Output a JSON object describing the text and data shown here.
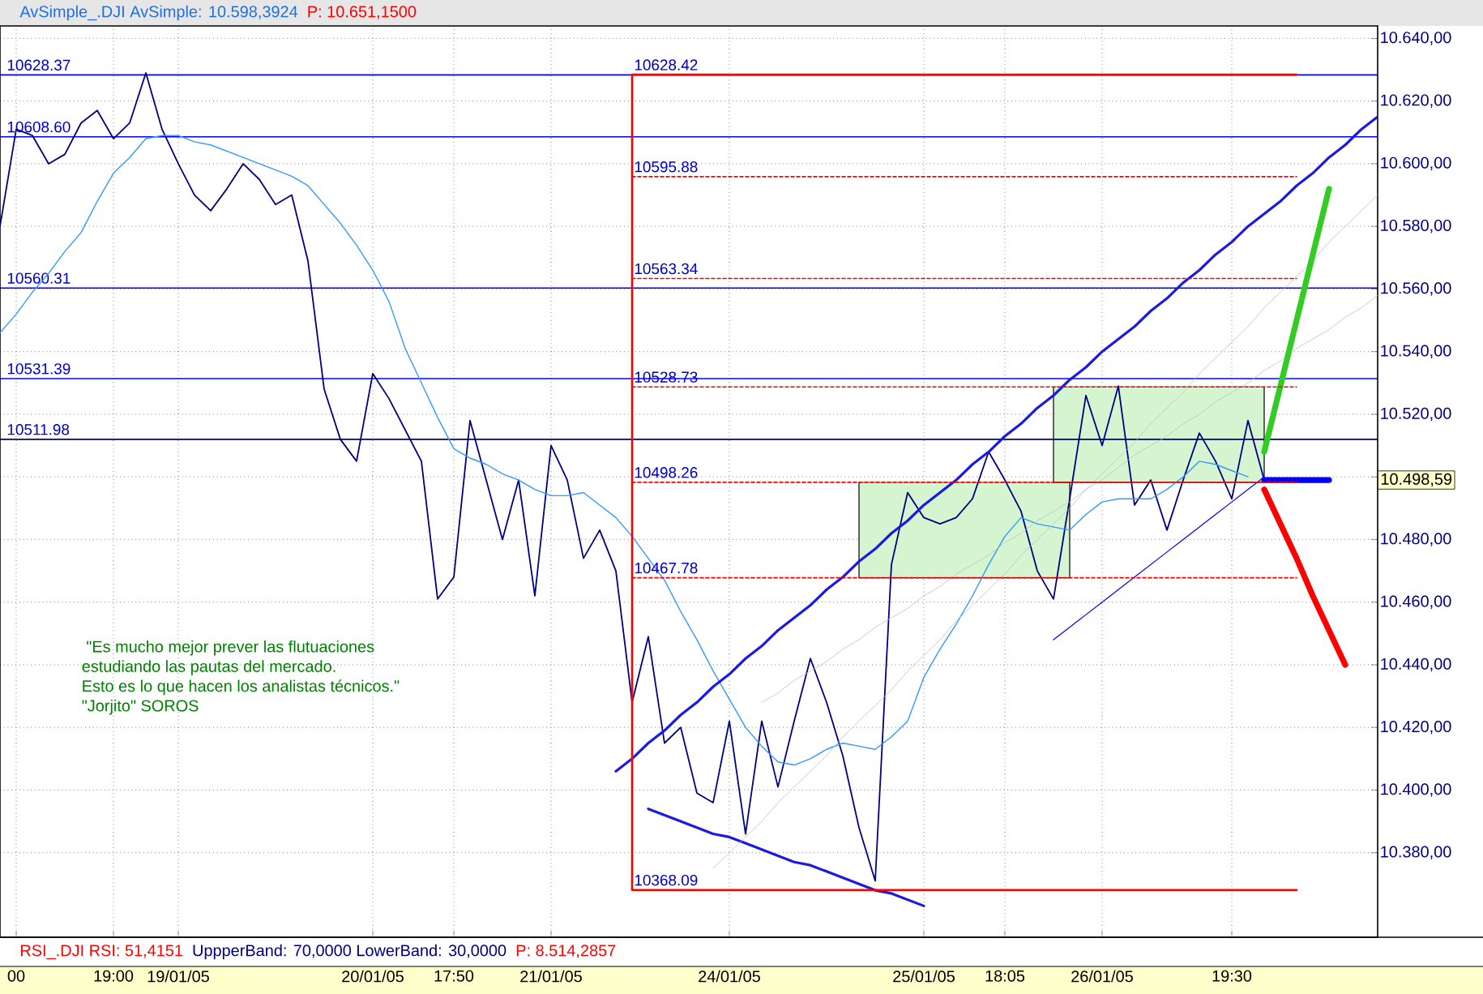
{
  "chart_data": {
    "type": "line",
    "title": "AvSimple_.DJI AvSimple: 10.598,3924",
    "subtitle": "P: 10.651,1500",
    "categories": [
      null,
      "00",
      null,
      null,
      null,
      null,
      null,
      "19:00",
      null,
      null,
      null,
      "19/01/05",
      null,
      null,
      null,
      null,
      null,
      null,
      null,
      null,
      null,
      null,
      null,
      "20/01/05",
      null,
      null,
      null,
      null,
      "17:50",
      null,
      null,
      null,
      null,
      null,
      "21/01/05",
      null,
      null,
      null,
      null,
      null,
      null,
      null,
      null,
      null,
      null,
      "24/01/05",
      null,
      null,
      null,
      null,
      null,
      null,
      null,
      null,
      null,
      null,
      null,
      "25/01/05",
      null,
      null,
      null,
      null,
      "18:05",
      null,
      null,
      null,
      null,
      null,
      "26/01/05",
      null,
      null,
      null,
      null,
      null,
      null,
      null,
      "19:30",
      null,
      null,
      null,
      null,
      null,
      null,
      null,
      null,
      null
    ],
    "ylim": [
      10353,
      10644
    ],
    "yticks": [
      {
        "value": 10380,
        "label": "10.380,00"
      },
      {
        "value": 10400,
        "label": "10.400,00"
      },
      {
        "value": 10420,
        "label": "10.420,00"
      },
      {
        "value": 10440,
        "label": "10.440,00"
      },
      {
        "value": 10460,
        "label": "10.460,00"
      },
      {
        "value": 10480,
        "label": "10.480,00"
      },
      {
        "value": 10500,
        "label": null
      },
      {
        "value": 10520,
        "label": "10.520,00"
      },
      {
        "value": 10540,
        "label": "10.540,00"
      },
      {
        "value": 10560,
        "label": "10.560,00"
      },
      {
        "value": 10580,
        "label": "10.580,00"
      },
      {
        "value": 10600,
        "label": "10.600,00"
      },
      {
        "value": 10620,
        "label": "10.620,00"
      },
      {
        "value": 10640,
        "label": "10.640,00"
      }
    ],
    "grid": true,
    "series": [
      {
        "color": "#000080",
        "values": [
          10580,
          10611,
          10609,
          10600,
          10603,
          10613,
          10617,
          10608,
          10613,
          10629,
          10611,
          10600,
          10590,
          10585,
          10592,
          10600,
          10595,
          10587,
          10590,
          10569,
          10528,
          10512,
          10505,
          10533,
          10525,
          10515,
          10505,
          10461,
          10468,
          10518,
          10499,
          10480,
          10499,
          10462,
          10510,
          10499,
          10474,
          10483,
          10470,
          10428,
          10449,
          10415,
          10420,
          10399,
          10396,
          10422,
          10386,
          10422,
          10401,
          10422,
          10442,
          10428,
          10411,
          10388,
          10371,
          10472,
          10495,
          10487,
          10485,
          10487,
          10493,
          10508,
          10499,
          10489,
          10470,
          10461,
          10493,
          10526,
          10510,
          10529,
          10491,
          10499,
          10483,
          10499,
          10514,
          10505,
          10493,
          10518,
          10499,
          null,
          null,
          null,
          null,
          null,
          null,
          null
        ]
      },
      {
        "color": "#3399ff",
        "values": [
          10546,
          10552,
          10559,
          10565,
          10572,
          10578,
          10588,
          10597,
          10602,
          10608,
          10609,
          10609,
          10607,
          10606,
          10604,
          10602,
          10600,
          10598,
          10596,
          10593,
          10587,
          10581,
          10574,
          10566,
          10556,
          10541,
          10530,
          10519,
          10509,
          10506,
          10504,
          10501,
          10499,
          10496,
          10494,
          10494,
          10495,
          10491,
          10487,
          10481,
          10474,
          10467,
          10457,
          10448,
          10438,
          10429,
          10420,
          10414,
          10409,
          10408,
          10410,
          10413,
          10415,
          10414,
          10413,
          10417,
          10422,
          10436,
          10445,
          10453,
          10462,
          10472,
          10481,
          10487,
          10485,
          10484,
          10483,
          10488,
          10492,
          10493,
          10493,
          10493,
          10496,
          10500,
          10505,
          10504,
          10502,
          10500,
          null,
          null,
          null,
          null,
          null,
          null,
          null,
          null
        ]
      },
      {
        "name": "10628.42",
        "color": "#ff0000",
        "values": [
          null,
          null,
          null,
          null,
          null,
          null,
          null,
          null,
          null,
          null,
          null,
          null,
          null,
          null,
          null,
          null,
          null,
          null,
          null,
          null,
          null,
          null,
          null,
          null,
          null,
          null,
          null,
          null,
          null,
          null,
          null,
          null,
          null,
          null,
          null,
          null,
          null,
          null,
          null,
          10628.42,
          10628.42,
          10628.42,
          10628.42,
          10628.42,
          10628.42,
          10628.42,
          10628.42,
          10628.42,
          10628.42,
          10628.42,
          10628.42,
          10628.42,
          10628.42,
          10628.42,
          10628.42,
          10628.42,
          10628.42,
          10628.42,
          10628.42,
          10628.42,
          10628.42,
          10628.42,
          10628.42,
          10628.42,
          10628.42,
          10628.42,
          10628.42,
          10628.42,
          10628.42,
          10628.42,
          10628.42,
          10628.42,
          10628.42,
          10628.42,
          10628.42,
          10628.42,
          10628.42,
          10628.42,
          10628.42,
          10628.42,
          10628.42,
          null,
          null,
          null,
          null,
          null
        ]
      },
      {
        "name": "10595.88",
        "color": "#ff0000",
        "line_style": "dashed",
        "values": [
          null,
          null,
          null,
          null,
          null,
          null,
          null,
          null,
          null,
          null,
          null,
          null,
          null,
          null,
          null,
          null,
          null,
          null,
          null,
          null,
          null,
          null,
          null,
          null,
          null,
          null,
          null,
          null,
          null,
          null,
          null,
          null,
          null,
          null,
          null,
          null,
          null,
          null,
          null,
          10595.88,
          10595.88,
          10595.88,
          10595.88,
          10595.88,
          10595.88,
          10595.88,
          10595.88,
          10595.88,
          10595.88,
          10595.88,
          10595.88,
          10595.88,
          10595.88,
          10595.88,
          10595.88,
          10595.88,
          10595.88,
          10595.88,
          10595.88,
          10595.88,
          10595.88,
          10595.88,
          10595.88,
          10595.88,
          10595.88,
          10595.88,
          10595.88,
          10595.88,
          10595.88,
          10595.88,
          10595.88,
          10595.88,
          10595.88,
          10595.88,
          10595.88,
          10595.88,
          10595.88,
          10595.88,
          10595.88,
          10595.88,
          10595.88,
          null,
          null,
          null,
          null,
          null
        ]
      },
      {
        "name": "10563.34",
        "color": "#ff0000",
        "line_style": "dashed",
        "values": [
          null,
          null,
          null,
          null,
          null,
          null,
          null,
          null,
          null,
          null,
          null,
          null,
          null,
          null,
          null,
          null,
          null,
          null,
          null,
          null,
          null,
          null,
          null,
          null,
          null,
          null,
          null,
          null,
          null,
          null,
          null,
          null,
          null,
          null,
          null,
          null,
          null,
          null,
          null,
          10563.34,
          10563.34,
          10563.34,
          10563.34,
          10563.34,
          10563.34,
          10563.34,
          10563.34,
          10563.34,
          10563.34,
          10563.34,
          10563.34,
          10563.34,
          10563.34,
          10563.34,
          10563.34,
          10563.34,
          10563.34,
          10563.34,
          10563.34,
          10563.34,
          10563.34,
          10563.34,
          10563.34,
          10563.34,
          10563.34,
          10563.34,
          10563.34,
          10563.34,
          10563.34,
          10563.34,
          10563.34,
          10563.34,
          10563.34,
          10563.34,
          10563.34,
          10563.34,
          10563.34,
          10563.34,
          10563.34,
          10563.34,
          10563.34,
          null,
          null,
          null,
          null,
          null
        ]
      },
      {
        "name": "10528.73",
        "color": "#ff0000",
        "line_style": "dashed",
        "values": [
          null,
          null,
          null,
          null,
          null,
          null,
          null,
          null,
          null,
          null,
          null,
          null,
          null,
          null,
          null,
          null,
          null,
          null,
          null,
          null,
          null,
          null,
          null,
          null,
          null,
          null,
          null,
          null,
          null,
          null,
          null,
          null,
          null,
          null,
          null,
          null,
          null,
          null,
          null,
          10528.73,
          10528.73,
          10528.73,
          10528.73,
          10528.73,
          10528.73,
          10528.73,
          10528.73,
          10528.73,
          10528.73,
          10528.73,
          10528.73,
          10528.73,
          10528.73,
          10528.73,
          10528.73,
          10528.73,
          10528.73,
          10528.73,
          10528.73,
          10528.73,
          10528.73,
          10528.73,
          10528.73,
          10528.73,
          10528.73,
          10528.73,
          10528.73,
          10528.73,
          10528.73,
          10528.73,
          10528.73,
          10528.73,
          10528.73,
          10528.73,
          10528.73,
          10528.73,
          10528.73,
          10528.73,
          10528.73,
          10528.73,
          10528.73,
          null,
          null,
          null,
          null,
          null
        ]
      },
      {
        "name": "10498.26",
        "color": "#ff0000",
        "line_style": "dashed",
        "values": [
          null,
          null,
          null,
          null,
          null,
          null,
          null,
          null,
          null,
          null,
          null,
          null,
          null,
          null,
          null,
          null,
          null,
          null,
          null,
          null,
          null,
          null,
          null,
          null,
          null,
          null,
          null,
          null,
          null,
          null,
          null,
          null,
          null,
          null,
          null,
          null,
          null,
          null,
          null,
          10498.26,
          10498.26,
          10498.26,
          10498.26,
          10498.26,
          10498.26,
          10498.26,
          10498.26,
          10498.26,
          10498.26,
          10498.26,
          10498.26,
          10498.26,
          10498.26,
          10498.26,
          10498.26,
          10498.26,
          10498.26,
          10498.26,
          10498.26,
          10498.26,
          10498.26,
          10498.26,
          10498.26,
          10498.26,
          10498.26,
          10498.26,
          10498.26,
          10498.26,
          10498.26,
          10498.26,
          10498.26,
          10498.26,
          10498.26,
          10498.26,
          10498.26,
          10498.26,
          10498.26,
          10498.26,
          10498.26,
          10498.26,
          10498.26,
          null,
          null,
          null,
          null,
          null
        ]
      },
      {
        "name": "10467.78",
        "color": "#ff0000",
        "line_style": "dashed",
        "values": [
          null,
          null,
          null,
          null,
          null,
          null,
          null,
          null,
          null,
          null,
          null,
          null,
          null,
          null,
          null,
          null,
          null,
          null,
          null,
          null,
          null,
          null,
          null,
          null,
          null,
          null,
          null,
          null,
          null,
          null,
          null,
          null,
          null,
          null,
          null,
          null,
          null,
          null,
          null,
          10467.78,
          10467.78,
          10467.78,
          10467.78,
          10467.78,
          10467.78,
          10467.78,
          10467.78,
          10467.78,
          10467.78,
          10467.78,
          10467.78,
          10467.78,
          10467.78,
          10467.78,
          10467.78,
          10467.78,
          10467.78,
          10467.78,
          10467.78,
          10467.78,
          10467.78,
          10467.78,
          10467.78,
          10467.78,
          10467.78,
          10467.78,
          10467.78,
          10467.78,
          10467.78,
          10467.78,
          10467.78,
          10467.78,
          10467.78,
          10467.78,
          10467.78,
          10467.78,
          10467.78,
          10467.78,
          10467.78,
          10467.78,
          10467.78,
          null,
          null,
          null,
          null,
          null
        ]
      },
      {
        "name": "10368.09",
        "color": "#ff0000",
        "values": [
          null,
          null,
          null,
          null,
          null,
          null,
          null,
          null,
          null,
          null,
          null,
          null,
          null,
          null,
          null,
          null,
          null,
          null,
          null,
          null,
          null,
          null,
          null,
          null,
          null,
          null,
          null,
          null,
          null,
          null,
          null,
          null,
          null,
          null,
          null,
          null,
          null,
          null,
          null,
          10368.09,
          10368.09,
          10368.09,
          10368.09,
          10368.09,
          10368.09,
          10368.09,
          10368.09,
          10368.09,
          10368.09,
          10368.09,
          10368.09,
          10368.09,
          10368.09,
          10368.09,
          10368.09,
          10368.09,
          10368.09,
          10368.09,
          10368.09,
          10368.09,
          10368.09,
          10368.09,
          10368.09,
          10368.09,
          10368.09,
          10368.09,
          10368.09,
          10368.09,
          10368.09,
          10368.09,
          10368.09,
          10368.09,
          10368.09,
          10368.09,
          10368.09,
          10368.09,
          10368.09,
          10368.09,
          10368.09,
          10368.09,
          10368.09,
          null,
          null,
          null,
          null,
          null
        ]
      },
      {
        "color": "#1a1ae0",
        "values": [
          null,
          null,
          null,
          null,
          null,
          null,
          null,
          null,
          null,
          null,
          null,
          null,
          null,
          null,
          null,
          null,
          null,
          null,
          null,
          null,
          null,
          null,
          null,
          null,
          null,
          null,
          null,
          null,
          null,
          null,
          null,
          null,
          null,
          null,
          null,
          null,
          null,
          null,
          10406,
          10410,
          10415,
          10419,
          10424,
          10428,
          10433,
          10437,
          10442,
          10446,
          10451,
          10455,
          10459,
          10464,
          10468,
          10473,
          10477,
          10482,
          10486,
          10491,
          10495,
          10499,
          10504,
          10508,
          10513,
          10517,
          10522,
          10526,
          10531,
          10535,
          10540,
          10544,
          10548,
          10553,
          10557,
          10562,
          10566,
          10571,
          10575,
          10580,
          10584,
          10588,
          10593,
          10597,
          10602,
          10606,
          10611,
          10615
        ]
      },
      {
        "color": "#1a1ae0",
        "values": [
          null,
          null,
          null,
          null,
          null,
          null,
          null,
          null,
          null,
          null,
          null,
          null,
          null,
          null,
          null,
          null,
          null,
          null,
          null,
          null,
          null,
          null,
          null,
          null,
          null,
          null,
          null,
          null,
          null,
          null,
          null,
          null,
          null,
          null,
          null,
          null,
          null,
          null,
          null,
          null,
          10394,
          10392,
          10390,
          10388,
          10386,
          10385,
          10383,
          10381,
          10379,
          10377,
          10376,
          10374,
          10372,
          10370,
          10368,
          10367,
          10365,
          10363,
          null,
          null,
          null,
          null,
          null,
          null,
          null,
          null,
          null,
          null,
          null,
          null,
          null,
          null,
          null,
          null,
          null,
          null,
          null,
          null,
          null,
          null,
          null,
          null,
          null,
          null,
          null,
          null
        ]
      },
      {
        "color": "#0000ff",
        "values": [
          null,
          null,
          null,
          null,
          null,
          null,
          null,
          null,
          null,
          null,
          null,
          null,
          null,
          null,
          null,
          null,
          null,
          null,
          null,
          null,
          null,
          null,
          null,
          null,
          null,
          null,
          null,
          null,
          null,
          null,
          null,
          null,
          null,
          null,
          null,
          null,
          null,
          null,
          null,
          null,
          null,
          null,
          null,
          null,
          null,
          null,
          null,
          null,
          null,
          null,
          null,
          null,
          null,
          null,
          null,
          null,
          null,
          null,
          null,
          null,
          null,
          null,
          null,
          null,
          null,
          10448,
          10452,
          10456,
          10460,
          10464,
          10468,
          10472,
          10476,
          10480,
          10484,
          10488,
          10492,
          10496,
          10500,
          null,
          null,
          null,
          null,
          null,
          null,
          null
        ]
      },
      {
        "color": "#c0c0c0",
        "values": [
          null,
          null,
          null,
          null,
          null,
          null,
          null,
          null,
          null,
          null,
          null,
          null,
          null,
          null,
          null,
          null,
          null,
          null,
          null,
          null,
          null,
          null,
          null,
          null,
          null,
          null,
          null,
          null,
          null,
          null,
          null,
          null,
          null,
          null,
          null,
          null,
          null,
          null,
          null,
          null,
          null,
          null,
          null,
          null,
          10375,
          10380,
          10385,
          10390,
          10396,
          10401,
          10406,
          10411,
          10417,
          10422,
          10427,
          10432,
          10438,
          10443,
          10448,
          10454,
          10459,
          10464,
          10469,
          10475,
          10480,
          10485,
          10490,
          10496,
          10501,
          10506,
          10511,
          10517,
          10522,
          10527,
          10533,
          10538,
          10543,
          10548,
          10554,
          10559,
          10564,
          10569,
          10575,
          10580,
          10585,
          10590
        ]
      },
      {
        "color": "#c0c0c0",
        "values": [
          null,
          null,
          null,
          null,
          null,
          null,
          null,
          null,
          null,
          null,
          null,
          null,
          null,
          null,
          null,
          null,
          null,
          null,
          null,
          null,
          null,
          null,
          null,
          null,
          null,
          null,
          null,
          null,
          null,
          null,
          null,
          null,
          null,
          null,
          null,
          null,
          null,
          null,
          null,
          null,
          null,
          null,
          null,
          null,
          null,
          null,
          null,
          10428,
          10431,
          10435,
          10438,
          10441,
          10445,
          10448,
          10452,
          10455,
          10458,
          10462,
          10465,
          10469,
          10472,
          10475,
          10479,
          10482,
          10486,
          10489,
          10492,
          10496,
          10499,
          10503,
          10507,
          10510,
          10513,
          10517,
          10520,
          10524,
          10527,
          10530,
          10534,
          10537,
          10541,
          10544,
          10547,
          10551,
          10554,
          10558
        ]
      },
      {
        "color": "#d4f5d0",
        "values": [
          null,
          null,
          null,
          null,
          null,
          null,
          null,
          null,
          null,
          null,
          null,
          null,
          null,
          null,
          null,
          null,
          null,
          null,
          null,
          null,
          null,
          null,
          null,
          null,
          null,
          null,
          null,
          null,
          null,
          null,
          null,
          null,
          null,
          null,
          null,
          null,
          null,
          null,
          null,
          null,
          null,
          null,
          null,
          null,
          null,
          null,
          null,
          null,
          null,
          null,
          null,
          null,
          null,
          10498.26,
          10498.26,
          10498.26,
          10498.26,
          10498.26,
          10498.26,
          10498.26,
          10498.26,
          10498.26,
          10498.26,
          10498.26,
          10498.26,
          10498.26,
          10498.26,
          null,
          null,
          null,
          null,
          null,
          null,
          null,
          null,
          null,
          null,
          null,
          null,
          null,
          null,
          null,
          null,
          null,
          null,
          null
        ],
        "lower": [
          null,
          null,
          null,
          null,
          null,
          null,
          null,
          null,
          null,
          null,
          null,
          null,
          null,
          null,
          null,
          null,
          null,
          null,
          null,
          null,
          null,
          null,
          null,
          null,
          null,
          null,
          null,
          null,
          null,
          null,
          null,
          null,
          null,
          null,
          null,
          null,
          null,
          null,
          null,
          null,
          null,
          null,
          null,
          null,
          null,
          null,
          null,
          null,
          null,
          null,
          null,
          null,
          null,
          10467.78,
          10467.78,
          10467.78,
          10467.78,
          10467.78,
          10467.78,
          10467.78,
          10467.78,
          10467.78,
          10467.78,
          10467.78,
          10467.78,
          10467.78,
          10467.78,
          null,
          null,
          null,
          null,
          null,
          null,
          null,
          null,
          null,
          null,
          null,
          null,
          null,
          null,
          null,
          null,
          null,
          null,
          null
        ],
        "upper": [
          null,
          null,
          null,
          null,
          null,
          null,
          null,
          null,
          null,
          null,
          null,
          null,
          null,
          null,
          null,
          null,
          null,
          null,
          null,
          null,
          null,
          null,
          null,
          null,
          null,
          null,
          null,
          null,
          null,
          null,
          null,
          null,
          null,
          null,
          null,
          null,
          null,
          null,
          null,
          null,
          null,
          null,
          null,
          null,
          null,
          null,
          null,
          null,
          null,
          null,
          null,
          null,
          null,
          10498.26,
          10498.26,
          10498.26,
          10498.26,
          10498.26,
          10498.26,
          10498.26,
          10498.26,
          10498.26,
          10498.26,
          10498.26,
          10498.26,
          10498.26,
          10498.26,
          null,
          null,
          null,
          null,
          null,
          null,
          null,
          null,
          null,
          null,
          null,
          null,
          null,
          null,
          null,
          null,
          null,
          null,
          null
        ]
      },
      {
        "color": "#d4f5d0",
        "values": [
          null,
          null,
          null,
          null,
          null,
          null,
          null,
          null,
          null,
          null,
          null,
          null,
          null,
          null,
          null,
          null,
          null,
          null,
          null,
          null,
          null,
          null,
          null,
          null,
          null,
          null,
          null,
          null,
          null,
          null,
          null,
          null,
          null,
          null,
          null,
          null,
          null,
          null,
          null,
          null,
          null,
          null,
          null,
          null,
          null,
          null,
          null,
          null,
          null,
          null,
          null,
          null,
          null,
          null,
          null,
          null,
          null,
          null,
          null,
          null,
          null,
          null,
          null,
          null,
          null,
          10528.73,
          10528.73,
          10528.73,
          10528.73,
          10528.73,
          10528.73,
          10528.73,
          10528.73,
          10528.73,
          10528.73,
          10528.73,
          10528.73,
          10528.73,
          10528.73,
          null,
          null,
          null,
          null,
          null,
          null,
          null
        ],
        "lower": [
          null,
          null,
          null,
          null,
          null,
          null,
          null,
          null,
          null,
          null,
          null,
          null,
          null,
          null,
          null,
          null,
          null,
          null,
          null,
          null,
          null,
          null,
          null,
          null,
          null,
          null,
          null,
          null,
          null,
          null,
          null,
          null,
          null,
          null,
          null,
          null,
          null,
          null,
          null,
          null,
          null,
          null,
          null,
          null,
          null,
          null,
          null,
          null,
          null,
          null,
          null,
          null,
          null,
          null,
          null,
          null,
          null,
          null,
          null,
          null,
          null,
          null,
          null,
          null,
          null,
          10498.26,
          10498.26,
          10498.26,
          10498.26,
          10498.26,
          10498.26,
          10498.26,
          10498.26,
          10498.26,
          10498.26,
          10498.26,
          10498.26,
          10498.26,
          10498.26,
          null,
          null,
          null,
          null,
          null,
          null,
          null
        ],
        "upper": [
          null,
          null,
          null,
          null,
          null,
          null,
          null,
          null,
          null,
          null,
          null,
          null,
          null,
          null,
          null,
          null,
          null,
          null,
          null,
          null,
          null,
          null,
          null,
          null,
          null,
          null,
          null,
          null,
          null,
          null,
          null,
          null,
          null,
          null,
          null,
          null,
          null,
          null,
          null,
          null,
          null,
          null,
          null,
          null,
          null,
          null,
          null,
          null,
          null,
          null,
          null,
          null,
          null,
          null,
          null,
          null,
          null,
          null,
          null,
          null,
          null,
          null,
          null,
          null,
          null,
          10528.73,
          10528.73,
          10528.73,
          10528.73,
          10528.73,
          10528.73,
          10528.73,
          10528.73,
          10528.73,
          10528.73,
          10528.73,
          10528.73,
          10528.73,
          10528.73,
          null,
          null,
          null,
          null,
          null,
          null,
          null
        ]
      },
      {
        "color": "#33cc22",
        "values": [
          null,
          null,
          null,
          null,
          null,
          null,
          null,
          null,
          null,
          null,
          null,
          null,
          null,
          null,
          null,
          null,
          null,
          null,
          null,
          null,
          null,
          null,
          null,
          null,
          null,
          null,
          null,
          null,
          null,
          null,
          null,
          null,
          null,
          null,
          null,
          null,
          null,
          null,
          null,
          null,
          null,
          null,
          null,
          null,
          null,
          null,
          null,
          null,
          null,
          null,
          null,
          null,
          null,
          null,
          null,
          null,
          null,
          null,
          null,
          null,
          null,
          null,
          null,
          null,
          null,
          null,
          null,
          null,
          null,
          null,
          null,
          null,
          null,
          null,
          null,
          null,
          null,
          null,
          10508,
          10529,
          10550,
          10571,
          10592,
          null,
          null,
          null
        ]
      },
      {
        "color": "#ff0000",
        "values": [
          null,
          null,
          null,
          null,
          null,
          null,
          null,
          null,
          null,
          null,
          null,
          null,
          null,
          null,
          null,
          null,
          null,
          null,
          null,
          null,
          null,
          null,
          null,
          null,
          null,
          null,
          null,
          null,
          null,
          null,
          null,
          null,
          null,
          null,
          null,
          null,
          null,
          null,
          null,
          null,
          null,
          null,
          null,
          null,
          null,
          null,
          null,
          null,
          null,
          null,
          null,
          null,
          null,
          null,
          null,
          null,
          null,
          null,
          null,
          null,
          null,
          null,
          null,
          null,
          null,
          null,
          null,
          null,
          null,
          null,
          null,
          null,
          null,
          null,
          null,
          null,
          null,
          null,
          10496,
          10485,
          10474,
          10462,
          10451,
          10440,
          null,
          null
        ]
      },
      {
        "color": "#0000ff",
        "values": [
          null,
          null,
          null,
          null,
          null,
          null,
          null,
          null,
          null,
          null,
          null,
          null,
          null,
          null,
          null,
          null,
          null,
          null,
          null,
          null,
          null,
          null,
          null,
          null,
          null,
          null,
          null,
          null,
          null,
          null,
          null,
          null,
          null,
          null,
          null,
          null,
          null,
          null,
          null,
          null,
          null,
          null,
          null,
          null,
          null,
          null,
          null,
          null,
          null,
          null,
          null,
          null,
          null,
          null,
          null,
          null,
          null,
          null,
          null,
          null,
          null,
          null,
          null,
          null,
          null,
          null,
          null,
          null,
          null,
          null,
          null,
          null,
          null,
          null,
          null,
          null,
          null,
          null,
          10499,
          10499,
          10499,
          10499,
          10499,
          null,
          null,
          null
        ]
      }
    ],
    "ref_lines": [
      {
        "axis": "y",
        "value": 10628.37,
        "label": "10628.37",
        "color": "#0000ff"
      },
      {
        "axis": "y",
        "value": 10608.6,
        "label": "10608.60",
        "color": "#0000ff"
      },
      {
        "axis": "y",
        "value": 10560.31,
        "label": "10560.31",
        "color": "#0000ff"
      },
      {
        "axis": "y",
        "value": 10531.39,
        "label": "10531.39",
        "color": "#0000ff"
      },
      {
        "axis": "y",
        "value": 10511.98,
        "label": "10511.98",
        "color": "#000080"
      }
    ],
    "annotations": [
      " \"Es mucho mejor prever las flutuaciones",
      "estudiando las pautas del mercado.",
      "Esto es lo que hacen los analistas técnicos.\"",
      "\"Jorjito\" SOROS",
      "RSI_.DJI RSI: 51,4151",
      "UppperBand: 70,0000 LowerBand: 30,0000",
      "P: 8.514,2857",
      "10.498,59"
    ]
  }
}
